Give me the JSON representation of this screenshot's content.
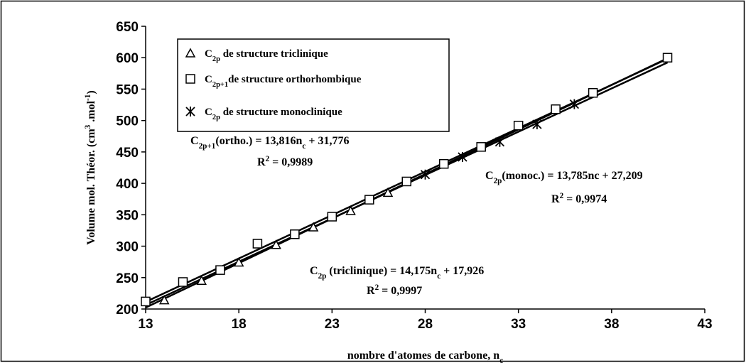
{
  "chart_data": {
    "type": "scatter",
    "x_label": {
      "base": "nombre d'atomes de carbone, n",
      "sub": "c"
    },
    "y_label": {
      "base": "Volume mol. Théor. (cm",
      "sup1": "3",
      "mid": " .mol",
      "sup2": "-1",
      "end": ")"
    },
    "xlim": [
      13,
      43
    ],
    "xticks": [
      13,
      18,
      23,
      28,
      33,
      38,
      43
    ],
    "ylim": [
      200,
      650
    ],
    "yticks": [
      200,
      250,
      300,
      350,
      400,
      450,
      500,
      550,
      600,
      650
    ],
    "grid": false,
    "series": [
      {
        "label": {
          "base": "C",
          "sub": "2p",
          "rest": " de structure triclinique"
        },
        "marker": "triangle",
        "color": "#000000",
        "x": [
          14,
          16,
          18,
          20,
          22,
          24,
          26
        ],
        "values": [
          214,
          245,
          274,
          302,
          330,
          356,
          385
        ],
        "trend": {
          "lhs": "C",
          "lhs_sub": "2p",
          "lhs_rest": " (triclinique) = ",
          "slope": {
            "value": 14.175,
            "label": "14,175"
          },
          "var": "n",
          "var_sub": "c",
          "op": " + ",
          "intercept": {
            "value": 17.926,
            "label": "17,926"
          },
          "r": "R",
          "r_sup": "2",
          "r_eq": " = ",
          "r2": {
            "value": 0.9997,
            "label": "0,9997"
          }
        }
      },
      {
        "label": {
          "base": "C",
          "sub": "2p+1",
          "rest": "de structure orthorhombique"
        },
        "marker": "square",
        "color": "#000000",
        "x": [
          13,
          15,
          17,
          19,
          21,
          23,
          25,
          27,
          29,
          31,
          33,
          35,
          37,
          41
        ],
        "values": [
          212,
          243,
          262,
          304,
          319,
          347,
          374,
          403,
          431,
          458,
          492,
          518,
          544,
          600
        ],
        "trend": {
          "lhs": "C",
          "lhs_sub": "2p+1",
          "lhs_rest": "(ortho.) = ",
          "slope": {
            "value": 13.816,
            "label": "13,816"
          },
          "var": "n",
          "var_sub": "c",
          "op": " + ",
          "intercept": {
            "value": 31.776,
            "label": "31,776"
          },
          "r": "R",
          "r_sup": "2",
          "r_eq": " = ",
          "r2": {
            "value": 0.9989,
            "label": "0,9989"
          }
        }
      },
      {
        "label": {
          "base": "C",
          "sub": "2p",
          "rest": " de structure monoclinique"
        },
        "marker": "star",
        "color": "#000000",
        "x": [
          28,
          30,
          32,
          34,
          36
        ],
        "values": [
          414,
          442,
          466,
          494,
          526
        ],
        "trend": {
          "lhs": "C",
          "lhs_sub": "2p",
          "lhs_rest": "(monoc.) = ",
          "slope": {
            "value": 13.785,
            "label": "13,785"
          },
          "var": "nc",
          "op": " + ",
          "intercept": {
            "value": 27.209,
            "label": "27,209"
          },
          "r": "R",
          "r_sup": "2",
          "r_eq": " = ",
          "r2": {
            "value": 0.9974,
            "label": "0,9974"
          }
        }
      }
    ]
  }
}
